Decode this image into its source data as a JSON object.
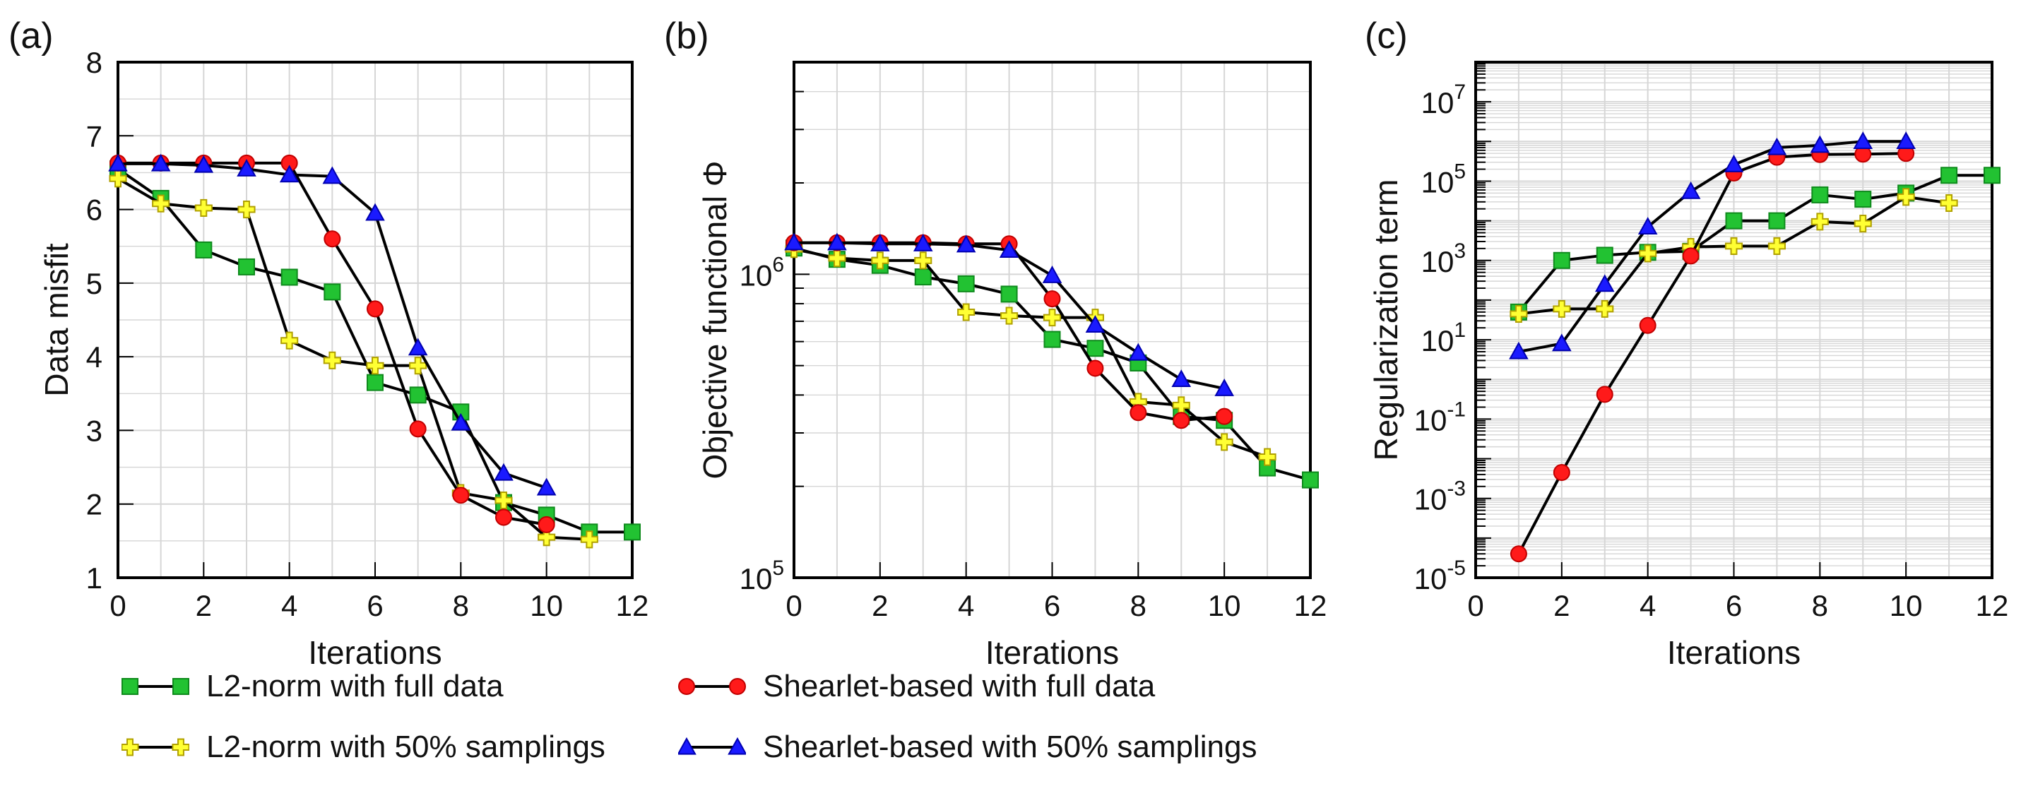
{
  "chart_data": [
    {
      "type": "line",
      "panel_label": "(a)",
      "scale": "linear",
      "xlabel": "Iterations",
      "ylabel": "Data misfit",
      "xlim": [
        0,
        12
      ],
      "ylim": [
        1,
        8
      ],
      "xticks": [
        0,
        2,
        4,
        6,
        8,
        10,
        12
      ],
      "xtick_labels": [
        "0",
        "2",
        "4",
        "6",
        "8",
        "10",
        "12"
      ],
      "yticks": [
        1,
        2,
        3,
        4,
        5,
        6,
        7,
        8
      ],
      "ytick_labels": [
        "1",
        "2",
        "3",
        "4",
        "5",
        "6",
        "7",
        "8"
      ],
      "grid": true,
      "series": [
        {
          "name": "L2-norm with full data",
          "key": "l2_full",
          "x": [
            0,
            1,
            2,
            3,
            4,
            5,
            6,
            7,
            8,
            9,
            10,
            11,
            12
          ],
          "y": [
            6.55,
            6.15,
            5.45,
            5.22,
            5.08,
            4.88,
            3.65,
            3.48,
            3.25,
            2.02,
            1.85,
            1.62,
            1.62
          ]
        },
        {
          "name": "L2-norm with 50% samplings",
          "key": "l2_half",
          "x": [
            0,
            1,
            2,
            3,
            4,
            5,
            6,
            7,
            8,
            9,
            10,
            11
          ],
          "y": [
            6.42,
            6.08,
            6.02,
            6.0,
            4.22,
            3.95,
            3.88,
            3.88,
            2.15,
            2.05,
            1.55,
            1.52
          ]
        },
        {
          "name": "Shearlet-based with full data",
          "key": "sh_full",
          "x": [
            0,
            1,
            2,
            3,
            4,
            5,
            6,
            7,
            8,
            9,
            10
          ],
          "y": [
            6.63,
            6.63,
            6.63,
            6.63,
            6.63,
            5.6,
            4.65,
            3.02,
            2.12,
            1.82,
            1.72
          ]
        },
        {
          "name": "Shearlet-based with 50% samplings",
          "key": "sh_half",
          "x": [
            0,
            1,
            2,
            3,
            4,
            5,
            6,
            7,
            8,
            9,
            10
          ],
          "y": [
            6.62,
            6.62,
            6.6,
            6.55,
            6.47,
            6.45,
            5.95,
            4.12,
            3.1,
            2.42,
            2.22
          ]
        }
      ]
    },
    {
      "type": "line",
      "panel_label": "(b)",
      "scale": "log",
      "xlabel": "Iterations",
      "ylabel": "Objective functional Φ",
      "xlim": [
        0,
        12
      ],
      "ylim": [
        100000,
        5000000
      ],
      "xticks": [
        0,
        2,
        4,
        6,
        8,
        10,
        12
      ],
      "xtick_labels": [
        "0",
        "2",
        "4",
        "6",
        "8",
        "10",
        "12"
      ],
      "yticks": [
        100000,
        1000000
      ],
      "ytick_base": [
        "10",
        "10"
      ],
      "ytick_exp": [
        "5",
        "6"
      ],
      "grid": true,
      "series": [
        {
          "name": "L2-norm with full data",
          "key": "l2_full",
          "x": [
            0,
            1,
            2,
            3,
            4,
            5,
            6,
            7,
            8,
            9,
            10,
            11,
            12
          ],
          "y": [
            1220000,
            1120000,
            1070000,
            980000,
            930000,
            860000,
            610000,
            570000,
            510000,
            340000,
            330000,
            230000,
            210000
          ]
        },
        {
          "name": "L2-norm with 50% samplings",
          "key": "l2_half",
          "x": [
            0,
            1,
            2,
            3,
            4,
            5,
            6,
            7,
            8,
            9,
            10,
            11
          ],
          "y": [
            1210000,
            1130000,
            1110000,
            1110000,
            750000,
            730000,
            720000,
            720000,
            380000,
            370000,
            280000,
            250000
          ]
        },
        {
          "name": "Shearlet-based with full data",
          "key": "sh_full",
          "x": [
            0,
            1,
            2,
            3,
            4,
            5,
            6,
            7,
            8,
            9,
            10
          ],
          "y": [
            1270000,
            1270000,
            1270000,
            1270000,
            1260000,
            1260000,
            830000,
            490000,
            350000,
            330000,
            340000
          ]
        },
        {
          "name": "Shearlet-based with 50% samplings",
          "key": "sh_half",
          "x": [
            0,
            1,
            2,
            3,
            4,
            5,
            6,
            7,
            8,
            9,
            10
          ],
          "y": [
            1270000,
            1270000,
            1260000,
            1260000,
            1250000,
            1200000,
            990000,
            680000,
            550000,
            450000,
            420000
          ]
        }
      ]
    },
    {
      "type": "line",
      "panel_label": "(c)",
      "scale": "log",
      "xlabel": "Iterations",
      "ylabel": "Regularization term",
      "xlim": [
        0,
        12
      ],
      "ylim": [
        1e-05,
        100000000
      ],
      "xticks": [
        0,
        2,
        4,
        6,
        8,
        10,
        12
      ],
      "xtick_labels": [
        "0",
        "2",
        "4",
        "6",
        "8",
        "10",
        "12"
      ],
      "yticks": [
        1e-05,
        0.001,
        0.1,
        10,
        1000,
        100000,
        10000000
      ],
      "ytick_base": [
        "10",
        "10",
        "10",
        "10",
        "10",
        "10",
        "10"
      ],
      "ytick_exp": [
        "-5",
        "-3",
        "-1",
        "1",
        "3",
        "5",
        "7"
      ],
      "grid": true,
      "series": [
        {
          "name": "L2-norm with full data",
          "key": "l2_full",
          "x": [
            1,
            2,
            3,
            4,
            5,
            6,
            7,
            8,
            9,
            10,
            11,
            12
          ],
          "y": [
            50,
            1000,
            1350,
            1600,
            1700,
            10000,
            10000,
            45000,
            35000,
            50000,
            140000,
            140000
          ]
        },
        {
          "name": "L2-norm with 50% samplings",
          "key": "l2_half",
          "x": [
            1,
            2,
            3,
            4,
            5,
            6,
            7,
            8,
            9,
            10,
            11
          ],
          "y": [
            45,
            60,
            60,
            1500,
            2200,
            2300,
            2300,
            9500,
            8500,
            40000,
            28000
          ]
        },
        {
          "name": "Shearlet-based with full data",
          "key": "sh_full",
          "x": [
            1,
            2,
            3,
            4,
            5,
            6,
            7,
            8,
            9,
            10
          ],
          "y": [
            4e-05,
            0.0045,
            0.42,
            23,
            1300,
            160000,
            400000,
            470000,
            480000,
            500000
          ]
        },
        {
          "name": "Shearlet-based with 50% samplings",
          "key": "sh_half",
          "x": [
            1,
            2,
            3,
            4,
            5,
            6,
            7,
            8,
            9,
            10
          ],
          "y": [
            5,
            8,
            250,
            7000,
            55000,
            260000,
            700000,
            800000,
            1000000,
            1000000
          ]
        }
      ]
    }
  ],
  "legend": {
    "placement": "bottom",
    "items": [
      {
        "key": "l2_full",
        "label": "L2-norm with full data"
      },
      {
        "key": "sh_full",
        "label": "Shearlet-based with full data"
      },
      {
        "key": "l2_half",
        "label": "L2-norm with 50% samplings"
      },
      {
        "key": "sh_half",
        "label": "Shearlet-based with 50% samplings"
      }
    ]
  },
  "styles": {
    "l2_full": {
      "marker": "square",
      "fill": "#22c232",
      "stroke": "#0e8a1c"
    },
    "l2_half": {
      "marker": "plus",
      "fill": "#ffff33",
      "stroke": "#b0a000"
    },
    "sh_full": {
      "marker": "circle",
      "fill": "#ff1a1a",
      "stroke": "#c00000"
    },
    "sh_half": {
      "marker": "triangle",
      "fill": "#1a1aff",
      "stroke": "#0000b0"
    },
    "line_color": "#000000",
    "grid_color": "#d6d6d6"
  }
}
